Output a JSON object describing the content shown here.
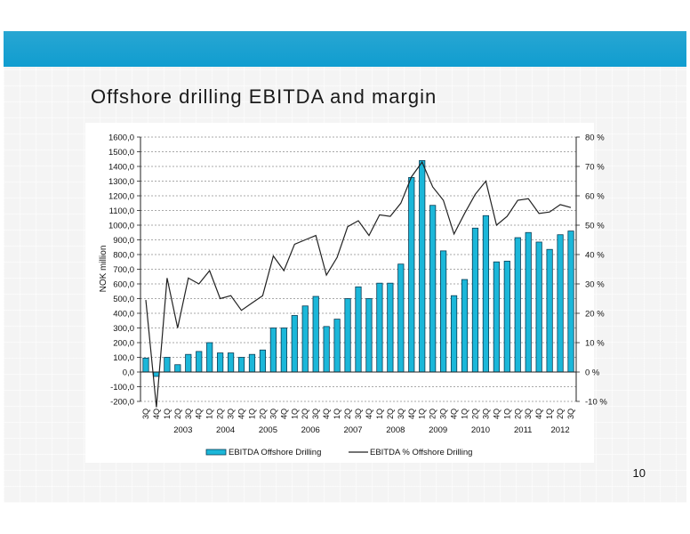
{
  "slide": {
    "title": "Offshore drilling EBITDA and margin",
    "page_number": "10",
    "banner_color": "#109dd0"
  },
  "chart_data": {
    "type": "bar",
    "title": "",
    "ylabel": "NOK million",
    "ylim": [
      -200,
      1600
    ],
    "y_ticks": [
      "1600,0",
      "1500,0",
      "1400,0",
      "1300,0",
      "1200,0",
      "1100,0",
      "1000,0",
      "900,0",
      "800,0",
      "700,0",
      "600,0",
      "500,0",
      "400,0",
      "300,0",
      "200,0",
      "100,0",
      "0,0",
      "-100,0",
      "-200,0"
    ],
    "y2lim": [
      -10,
      80
    ],
    "y2_ticks": [
      "80 %",
      "70 %",
      "60 %",
      "50 %",
      "40 %",
      "30 %",
      "20 %",
      "10 %",
      "0 %",
      "-10 %"
    ],
    "categories": [
      "3Q",
      "4Q",
      "1Q",
      "2Q",
      "3Q",
      "4Q",
      "1Q",
      "2Q",
      "3Q",
      "4Q",
      "1Q",
      "2Q",
      "3Q",
      "4Q",
      "1Q",
      "2Q",
      "3Q",
      "4Q",
      "1Q",
      "2Q",
      "3Q",
      "4Q",
      "1Q",
      "2Q",
      "3Q",
      "4Q",
      "1Q",
      "2Q",
      "3Q",
      "4Q",
      "1Q",
      "2Q",
      "3Q",
      "4Q",
      "1Q",
      "2Q",
      "3Q",
      "4Q",
      "1Q",
      "2Q",
      "3Q"
    ],
    "year_labels": [
      {
        "label": "2003",
        "index": 3.5
      },
      {
        "label": "2004",
        "index": 7.5
      },
      {
        "label": "2005",
        "index": 11.5
      },
      {
        "label": "2006",
        "index": 15.5
      },
      {
        "label": "2007",
        "index": 19.5
      },
      {
        "label": "2008",
        "index": 23.5
      },
      {
        "label": "2009",
        "index": 27.5
      },
      {
        "label": "2010",
        "index": 31.5
      },
      {
        "label": "2011",
        "index": 35.5
      },
      {
        "label": "2012",
        "index": 39
      }
    ],
    "series": [
      {
        "name": "EBITDA Offshore Drilling",
        "type": "bar",
        "axis": "left",
        "color": "#1bb7d9",
        "values": [
          95,
          -30,
          100,
          50,
          120,
          140,
          200,
          130,
          130,
          100,
          120,
          150,
          300,
          300,
          385,
          450,
          515,
          310,
          360,
          500,
          580,
          500,
          605,
          605,
          735,
          1325,
          1440,
          1135,
          825,
          520,
          630,
          980,
          1065,
          750,
          755,
          915,
          950,
          885,
          835,
          935,
          960
        ]
      },
      {
        "name": "EBITDA % Offshore Drilling",
        "type": "line",
        "axis": "right",
        "color": "#222222",
        "values": [
          24.5,
          -12,
          32,
          15,
          32,
          30,
          34.5,
          25,
          26,
          21,
          23.5,
          26,
          39.5,
          34.5,
          43.5,
          45,
          46.5,
          33,
          39,
          49.5,
          51.5,
          46.5,
          53.5,
          53,
          57.5,
          66.5,
          71.5,
          63,
          58.5,
          47,
          54,
          60.5,
          65,
          50,
          53,
          58.5,
          59,
          54,
          54.5,
          57,
          56
        ]
      }
    ],
    "legend_position": "bottom"
  }
}
